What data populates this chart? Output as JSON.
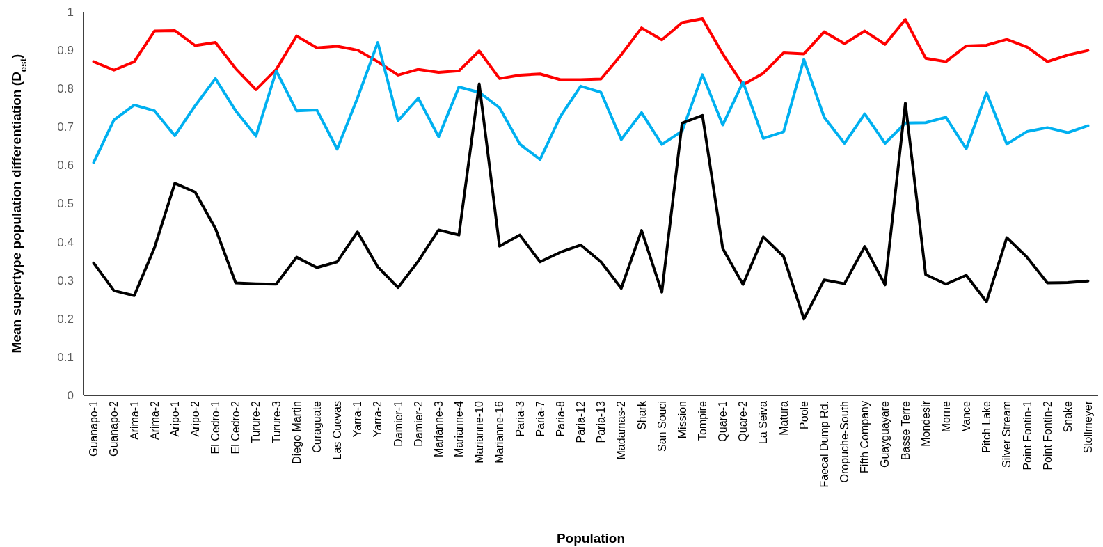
{
  "chart_data": {
    "type": "line",
    "xlabel": "Population",
    "ylabel": "Mean supertype population differentiation (D$_{est}$)",
    "categories": [
      "Guanapo-1",
      "Guanapo-2",
      "Arima-1",
      "Arima-2",
      "Aripo-1",
      "Aripo-2",
      "El Cedro-1",
      "El Cedro-2",
      "Turure-2",
      "Turure-3",
      "Diego Martin",
      "Curaguate",
      "Las Cuevas",
      "Yarra-1",
      "Yarra-2",
      "Damier-1",
      "Damier-2",
      "Marianne-3",
      "Marianne-4",
      "Marianne-10",
      "Marianne-16",
      "Paria-3",
      "Paria-7",
      "Paria-8",
      "Paria-12",
      "Paria-13",
      "Madamas-2",
      "Shark",
      "San Souci",
      "Mission",
      "Tompire",
      "Quare-1",
      "Quare-2",
      "La Seiva",
      "Matura",
      "Poole",
      "Faecal Dump Rd.",
      "Oropuche-South",
      "Fifth Company",
      "Guayguayare",
      "Basse Terre",
      "Mondesir",
      "Morne",
      "Vance",
      "Pitch Lake",
      "Silver Stream",
      "Point Fontin-1",
      "Point Fontin-2",
      "Snake",
      "Stollmeyer"
    ],
    "series": [
      {
        "color": "#ff0000",
        "values": [
          0.87,
          0.848,
          0.87,
          0.95,
          0.951,
          0.912,
          0.92,
          0.852,
          0.797,
          0.85,
          0.937,
          0.906,
          0.91,
          0.9,
          0.87,
          0.835,
          0.85,
          0.842,
          0.846,
          0.898,
          0.826,
          0.835,
          0.838,
          0.823,
          0.823,
          0.825,
          0.888,
          0.958,
          0.927,
          0.972,
          0.982,
          0.89,
          0.81,
          0.84,
          0.893,
          0.89,
          0.948,
          0.917,
          0.95,
          0.915,
          0.98,
          0.879,
          0.87,
          0.911,
          0.913,
          0.928,
          0.908,
          0.87,
          0.887,
          0.899
        ]
      },
      {
        "color": "#00b0f0",
        "values": [
          0.607,
          0.718,
          0.757,
          0.742,
          0.677,
          0.755,
          0.826,
          0.742,
          0.676,
          0.846,
          0.742,
          0.744,
          0.642,
          0.775,
          0.92,
          0.716,
          0.775,
          0.674,
          0.804,
          0.79,
          0.75,
          0.655,
          0.615,
          0.727,
          0.806,
          0.79,
          0.667,
          0.737,
          0.654,
          0.689,
          0.836,
          0.705,
          0.817,
          0.67,
          0.687,
          0.876,
          0.725,
          0.657,
          0.734,
          0.657,
          0.71,
          0.711,
          0.725,
          0.643,
          0.789,
          0.655,
          0.688,
          0.698,
          0.685,
          0.703
        ]
      },
      {
        "color": "#000000",
        "values": [
          0.345,
          0.273,
          0.26,
          0.385,
          0.553,
          0.53,
          0.435,
          0.293,
          0.291,
          0.29,
          0.36,
          0.333,
          0.348,
          0.426,
          0.335,
          0.281,
          0.35,
          0.431,
          0.418,
          0.812,
          0.389,
          0.418,
          0.348,
          0.373,
          0.392,
          0.348,
          0.279,
          0.43,
          0.269,
          0.71,
          0.73,
          0.383,
          0.289,
          0.413,
          0.362,
          0.199,
          0.301,
          0.291,
          0.388,
          0.288,
          0.762,
          0.315,
          0.29,
          0.313,
          0.244,
          0.411,
          0.36,
          0.293,
          0.294,
          0.298
        ]
      }
    ],
    "ylim": [
      0,
      1
    ],
    "yticks": [
      0,
      0.1,
      0.2,
      0.3,
      0.4,
      0.5,
      0.6,
      0.7,
      0.8,
      0.9,
      1
    ],
    "grid": false,
    "marker": "none",
    "line_style": "solid"
  }
}
